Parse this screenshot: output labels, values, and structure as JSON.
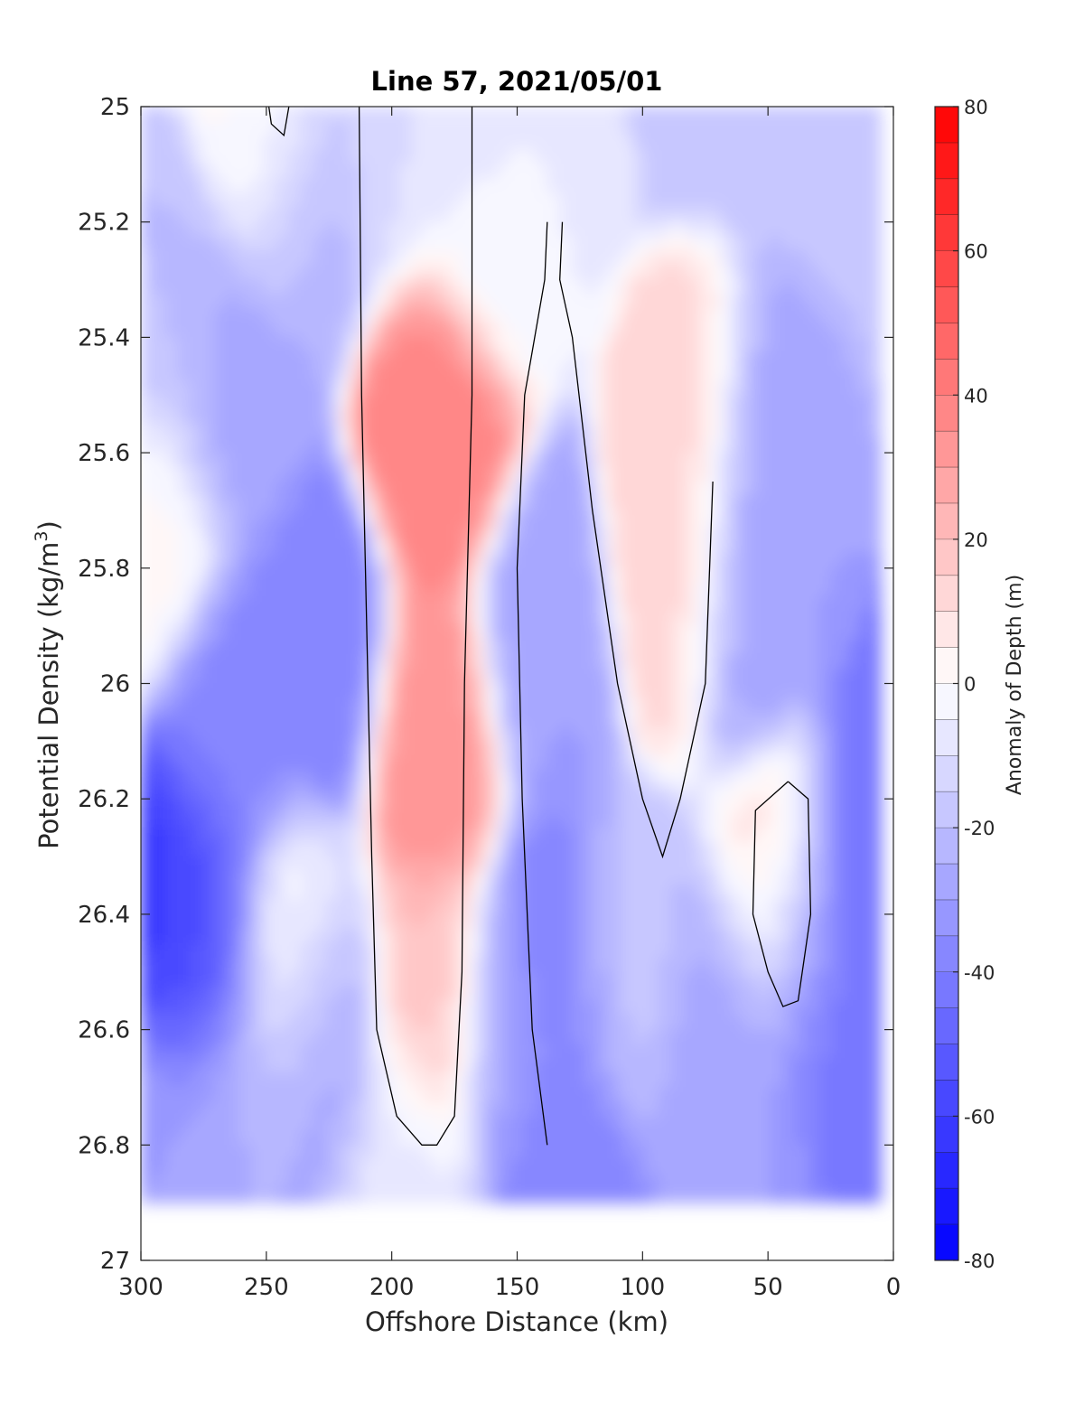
{
  "chart_data": {
    "type": "heatmap",
    "title": "Line 57, 2021/05/01",
    "xlabel": "Offshore Distance (km)",
    "ylabel_main": "Potential Density (kg/m",
    "ylabel_sup": "3",
    "ylabel_close": ")",
    "colorbar_label": "Anomaly of Depth (m)",
    "xlim": [
      300,
      0
    ],
    "ylim": [
      25,
      27
    ],
    "x_reversed": true,
    "y_reversed": true,
    "x_ticks": [
      300,
      250,
      200,
      150,
      100,
      50,
      0
    ],
    "x_tick_labels": [
      "300",
      "250",
      "200",
      "150",
      "100",
      "50",
      "0"
    ],
    "y_ticks": [
      25,
      25.2,
      25.4,
      25.6,
      25.8,
      26,
      26.2,
      26.4,
      26.6,
      26.8,
      27
    ],
    "y_tick_labels": [
      "25",
      "25.2",
      "25.4",
      "25.6",
      "25.8",
      "26",
      "26.2",
      "26.4",
      "26.6",
      "26.8",
      "27"
    ],
    "colorbar_range": [
      -80,
      80
    ],
    "colorbar_step": 5,
    "colorbar_ticks": [
      -80,
      -60,
      -40,
      -20,
      0,
      20,
      40,
      60,
      80
    ],
    "colorbar_tick_labels": [
      "-80",
      "-60",
      "-40",
      "-20",
      "0",
      "20",
      "40",
      "60",
      "80"
    ],
    "colormap": {
      "low": "#0000ff",
      "mid": "#ffffff",
      "high": "#ff0000"
    },
    "grid": false,
    "zero_contour_color": "#000000",
    "data_domain": {
      "x_max": 300,
      "x_min": 5,
      "density_min": 25,
      "density_max": 26.9
    },
    "features": [
      {
        "kind": "negative-core",
        "x": 288,
        "density": 26.4,
        "value": -65
      },
      {
        "kind": "negative-core",
        "x": 275,
        "density": 26.45,
        "value": -50
      },
      {
        "kind": "negative-core",
        "x": 265,
        "density": 26.1,
        "value": -38
      },
      {
        "kind": "negative-core",
        "x": 228,
        "density": 25.95,
        "value": -40
      },
      {
        "kind": "negative-core",
        "x": 228,
        "density": 26.6,
        "value": -30
      },
      {
        "kind": "negative-core",
        "x": 262,
        "density": 25.5,
        "value": -28
      },
      {
        "kind": "negative-core",
        "x": 232,
        "density": 25.15,
        "value": -25
      },
      {
        "kind": "negative-core",
        "x": 290,
        "density": 25.4,
        "value": -20
      },
      {
        "kind": "positive-core",
        "x": 182,
        "density": 25.55,
        "value": 40
      },
      {
        "kind": "positive-core",
        "x": 182,
        "density": 26.1,
        "value": 35
      },
      {
        "kind": "positive-core",
        "x": 183,
        "density": 26.55,
        "value": 20
      },
      {
        "kind": "negative-core",
        "x": 135,
        "density": 26.5,
        "value": -40
      },
      {
        "kind": "negative-core",
        "x": 140,
        "density": 25.95,
        "value": -30
      },
      {
        "kind": "negative-core",
        "x": 130,
        "density": 26.85,
        "value": -40
      },
      {
        "kind": "negative-core",
        "x": 152,
        "density": 26.6,
        "value": -30
      },
      {
        "kind": "positive-core",
        "x": 85,
        "density": 25.8,
        "value": 14
      },
      {
        "kind": "positive-core",
        "x": 44,
        "density": 26.38,
        "value": 12
      },
      {
        "kind": "negative-core",
        "x": 58,
        "density": 25.85,
        "value": -30
      },
      {
        "kind": "negative-core",
        "x": 15,
        "density": 26.35,
        "value": -45
      },
      {
        "kind": "negative-core",
        "x": 32,
        "density": 26.5,
        "value": -45
      },
      {
        "kind": "negative-core",
        "x": 68,
        "density": 26.6,
        "value": -28
      },
      {
        "kind": "negative-core",
        "x": 68,
        "density": 26.8,
        "value": -30
      },
      {
        "kind": "negative-core",
        "x": 260,
        "density": 26.75,
        "value": -25
      },
      {
        "kind": "negative-core",
        "x": 295,
        "density": 26.8,
        "value": -30
      },
      {
        "kind": "negative-core",
        "x": 195,
        "density": 26.85,
        "value": -8
      },
      {
        "kind": "negative-core",
        "x": 105,
        "density": 26.5,
        "value": -18
      },
      {
        "kind": "negative-core",
        "x": 200,
        "density": 25.05,
        "value": -10
      },
      {
        "kind": "negative-core",
        "x": 160,
        "density": 25.2,
        "value": -5
      },
      {
        "kind": "positive-core",
        "x": 240,
        "density": 26.48,
        "value": 2
      },
      {
        "kind": "positive-core",
        "x": 245,
        "density": 25.05,
        "value": 2
      },
      {
        "kind": "positive-core",
        "x": 295,
        "density": 25.72,
        "value": 2
      }
    ],
    "zero_contours": [
      {
        "name": "west-front",
        "points": [
          [
            213,
            25.0
          ],
          [
            212,
            25.5
          ],
          [
            210,
            25.9
          ],
          [
            208,
            26.3
          ],
          [
            206,
            26.6
          ],
          [
            198,
            26.75
          ],
          [
            188,
            26.8
          ],
          [
            182,
            26.8
          ],
          [
            175,
            26.75
          ],
          [
            172,
            26.5
          ],
          [
            171,
            26.0
          ],
          [
            168,
            25.5
          ],
          [
            168,
            25.0
          ]
        ]
      },
      {
        "name": "central-lobe",
        "points": [
          [
            138,
            25.2
          ],
          [
            139,
            25.3
          ],
          [
            147,
            25.5
          ],
          [
            150,
            25.8
          ],
          [
            148,
            26.2
          ],
          [
            144,
            26.6
          ],
          [
            138,
            26.8
          ]
        ]
      },
      {
        "name": "east-trough",
        "points": [
          [
            132,
            25.2
          ],
          [
            133,
            25.3
          ],
          [
            128,
            25.4
          ],
          [
            120,
            25.7
          ],
          [
            110,
            26.0
          ],
          [
            100,
            26.2
          ],
          [
            92,
            26.3
          ],
          [
            85,
            26.2
          ],
          [
            75,
            26.0
          ],
          [
            72,
            25.65
          ]
        ]
      },
      {
        "name": "coastal-eddy",
        "points": [
          [
            42,
            26.17
          ],
          [
            34,
            26.2
          ],
          [
            33,
            26.4
          ],
          [
            38,
            26.55
          ],
          [
            44,
            26.56
          ],
          [
            50,
            26.5
          ],
          [
            56,
            26.4
          ],
          [
            55,
            26.22
          ],
          [
            42,
            26.17
          ]
        ]
      },
      {
        "name": "top-notch",
        "points": [
          [
            249,
            25.0
          ],
          [
            248,
            25.03
          ],
          [
            243,
            25.05
          ],
          [
            241,
            25.0
          ]
        ]
      }
    ]
  }
}
